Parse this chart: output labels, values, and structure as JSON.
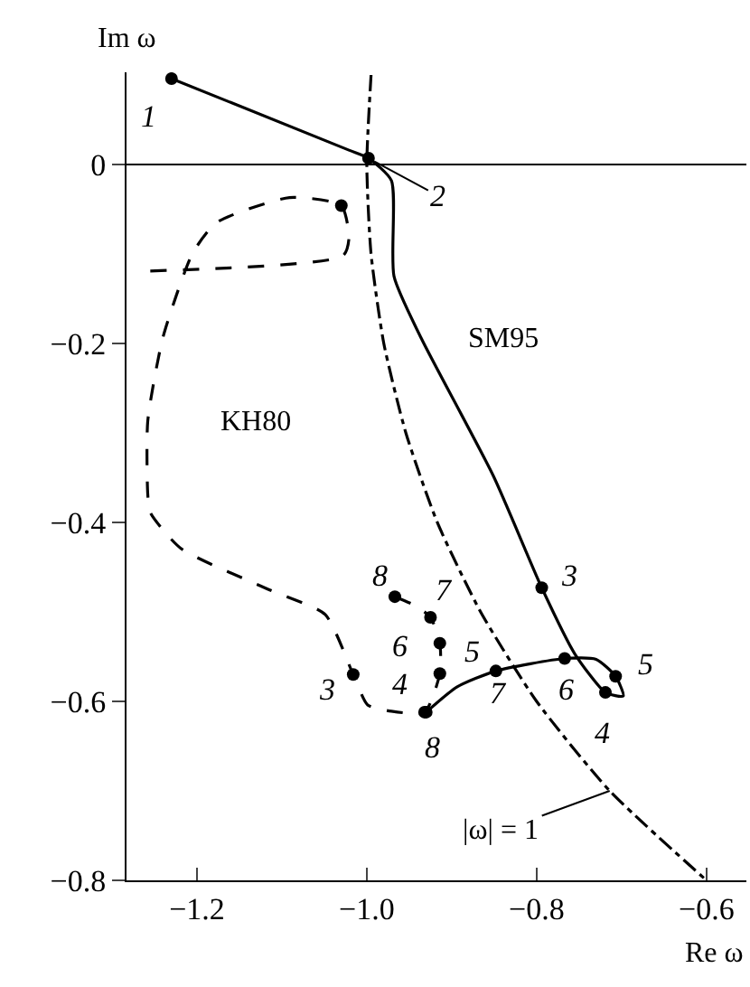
{
  "chart_data": {
    "type": "line",
    "xlabel": "Re ω",
    "ylabel": "Im ω",
    "xlim": [
      -1.283,
      -0.553
    ],
    "ylim": [
      -0.8,
      0.103
    ],
    "xticks": [
      {
        "value": -1.2,
        "label": "−1.2"
      },
      {
        "value": -1.0,
        "label": "−1.0"
      },
      {
        "value": -0.8,
        "label": "−0.8"
      },
      {
        "value": -0.6,
        "label": "−0.6"
      }
    ],
    "yticks": [
      {
        "value": -0.8,
        "label": "−0.8"
      },
      {
        "value": -0.6,
        "label": "−0.6"
      },
      {
        "value": -0.4,
        "label": "−0.4"
      },
      {
        "value": -0.2,
        "label": "−0.2"
      },
      0
    ],
    "legend": false,
    "ref_lines": [
      {
        "axis": "y",
        "value": 0,
        "color": "#000000",
        "line_style": "solid"
      }
    ],
    "series": [
      {
        "name": "SM95",
        "color": "#000000",
        "line_style": "solid",
        "marker": "none",
        "x": [
          -1.23,
          -1.021,
          -0.998,
          -0.971,
          -0.968,
          -0.936,
          -0.851,
          -0.794,
          -0.755,
          -0.719,
          -0.698,
          -0.707,
          -0.73,
          -0.767,
          -0.848,
          -0.894,
          -0.93
        ],
        "values": [
          0.096,
          0.016,
          0.007,
          -0.018,
          -0.125,
          -0.194,
          -0.348,
          -0.473,
          -0.547,
          -0.59,
          -0.594,
          -0.572,
          -0.553,
          -0.552,
          -0.566,
          -0.584,
          -0.612
        ]
      },
      {
        "name": "KH80",
        "color": "#000000",
        "line_style": "dashed",
        "marker": "none",
        "x": [
          -1.255,
          -1.028,
          -1.021,
          -1.03,
          -1.091,
          -1.177,
          -1.205,
          -1.24,
          -1.258,
          -1.258,
          -1.255,
          -1.219,
          -1.113,
          -1.049,
          -1.016,
          -0.999,
          -0.971,
          -0.932,
          -0.914,
          -0.914,
          -0.925,
          -0.943,
          -0.967
        ],
        "values": [
          -0.119,
          -0.102,
          -0.082,
          -0.046,
          -0.037,
          -0.065,
          -0.099,
          -0.193,
          -0.287,
          -0.368,
          -0.389,
          -0.429,
          -0.476,
          -0.503,
          -0.57,
          -0.604,
          -0.611,
          -0.612,
          -0.569,
          -0.535,
          -0.506,
          -0.493,
          -0.483
        ]
      },
      {
        "name": "|ω| = 1",
        "color": "#000000",
        "line_style": "dotted",
        "marker": "none",
        "x": [
          -0.995,
          -1.0,
          -0.995,
          -0.98,
          -0.954,
          -0.917,
          -0.866,
          -0.8,
          -0.714,
          -0.6
        ],
        "values": [
          0.1,
          0.0,
          -0.1,
          -0.2,
          -0.3,
          -0.4,
          -0.5,
          -0.6,
          -0.7,
          -0.8
        ]
      },
      {
        "type": "scatter",
        "color": "#000000",
        "marker": "circle",
        "x": [
          -1.23,
          -0.998,
          -0.794,
          -0.719,
          -0.707,
          -0.767,
          -0.848,
          -0.93,
          -1.03,
          -1.016,
          -0.932,
          -0.914,
          -0.914,
          -0.925,
          -0.967
        ],
        "values": [
          0.096,
          0.007,
          -0.473,
          -0.59,
          -0.572,
          -0.552,
          -0.566,
          -0.612,
          -0.046,
          -0.57,
          -0.612,
          -0.569,
          -0.535,
          -0.506,
          -0.483
        ]
      }
    ],
    "annotations": [
      {
        "text": "1",
        "x": -1.23,
        "y": 0.096
      },
      {
        "text": "2",
        "x": -0.998,
        "y": 0.007
      },
      {
        "text": "3",
        "x": -0.794,
        "y": -0.473
      },
      {
        "text": "3",
        "x": -1.016,
        "y": -0.57
      },
      {
        "text": "8",
        "x": -0.967,
        "y": -0.483
      },
      {
        "text": "7",
        "x": -0.925,
        "y": -0.506
      },
      {
        "text": "6",
        "x": -0.914,
        "y": -0.535
      },
      {
        "text": "5",
        "x": -0.914,
        "y": -0.569
      },
      {
        "text": "4",
        "x": -0.932,
        "y": -0.612
      },
      {
        "text": "8",
        "x": -0.93,
        "y": -0.612
      },
      {
        "text": "7",
        "x": -0.848,
        "y": -0.566
      },
      {
        "text": "6",
        "x": -0.767,
        "y": -0.552
      },
      {
        "text": "5",
        "x": -0.707,
        "y": -0.572
      },
      {
        "text": "4",
        "x": -0.719,
        "y": -0.59
      }
    ]
  }
}
